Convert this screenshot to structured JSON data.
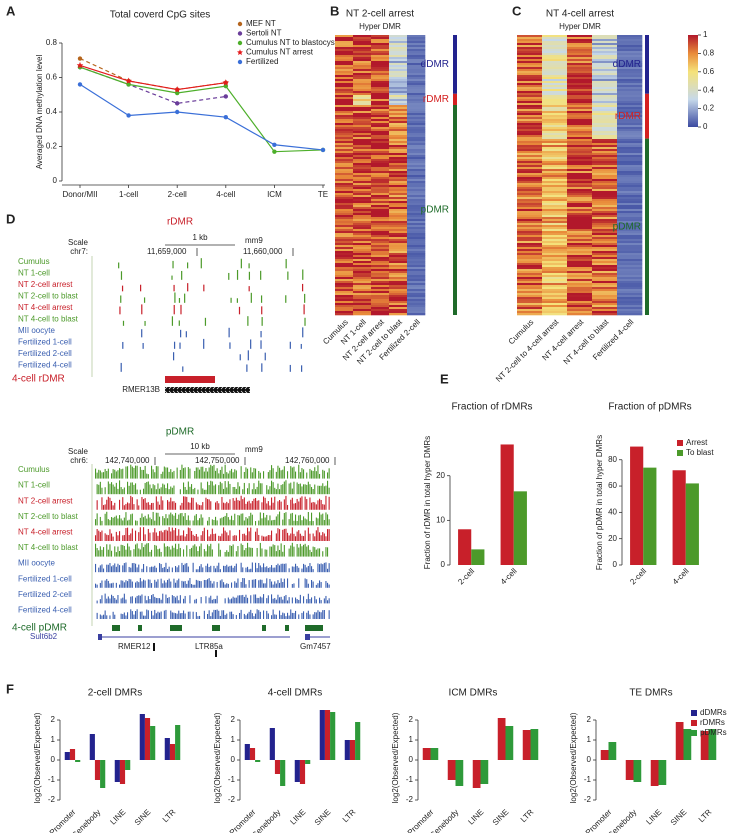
{
  "panel_labels": [
    "A",
    "B",
    "C",
    "D",
    "E",
    "F"
  ],
  "chart_data": [
    {
      "type": "line",
      "title": "Total coverd CpG sites",
      "y_label": "Averaged DNA methylation level",
      "categories": [
        "Donor/MII",
        "1-cell",
        "2-cell",
        "4-cell",
        "ICM",
        "TE"
      ],
      "ylim": [
        0,
        0.8
      ],
      "yticks": [
        0,
        0.2,
        0.4,
        0.6,
        0.8
      ],
      "legend": "top-right",
      "series": [
        {
          "name": "MEF NT",
          "color": "#b5651d",
          "dashed": true,
          "marker": "dot",
          "values": [
            0.71,
            0.58,
            0.53,
            0.57,
            null,
            null
          ]
        },
        {
          "name": "Sertoli NT",
          "color": "#6a3d9a",
          "dashed": true,
          "marker": "dot",
          "values": [
            0.66,
            0.56,
            0.45,
            0.49,
            null,
            null
          ]
        },
        {
          "name": "Cumulus NT to blastocyst",
          "color": "#4daf2a",
          "dashed": false,
          "marker": "dot",
          "values": [
            0.66,
            0.56,
            0.51,
            0.55,
            0.17,
            0.18
          ]
        },
        {
          "name": "Cumulus NT arrest",
          "color": "#e41a1c",
          "dashed": false,
          "marker": "star",
          "values": [
            0.67,
            0.58,
            0.53,
            0.57,
            null,
            null
          ]
        },
        {
          "name": "Fertilized",
          "color": "#3a6fd8",
          "dashed": false,
          "marker": "dot",
          "values": [
            0.56,
            0.38,
            0.4,
            0.37,
            0.21,
            0.18
          ]
        }
      ]
    },
    {
      "type": "bar",
      "title": "Fraction of rDMRs",
      "y_label": "Fraction of rDMR in total hyper DMRs",
      "categories": [
        "2-cell",
        "4-cell"
      ],
      "ylim": [
        0,
        28
      ],
      "yticks": [
        0,
        10,
        20
      ],
      "series": [
        {
          "name": "Arrest",
          "color": "#c8202a",
          "values": [
            8,
            27
          ]
        },
        {
          "name": "To blast",
          "color": "#4c9a2a",
          "values": [
            3.5,
            16.5
          ]
        }
      ]
    },
    {
      "type": "bar",
      "title": "Fraction of pDMRs",
      "y_label": "Fraction of pDMR in total hyper DMRs",
      "categories": [
        "2-cell",
        "4-cell"
      ],
      "ylim": [
        0,
        95
      ],
      "yticks": [
        0,
        20,
        40,
        60,
        80
      ],
      "legend": "top-right",
      "series": [
        {
          "name": "Arrest",
          "color": "#c8202a",
          "values": [
            90,
            72
          ]
        },
        {
          "name": "To blast",
          "color": "#4c9a2a",
          "values": [
            74,
            62
          ]
        }
      ]
    },
    {
      "type": "bar",
      "title": "2-cell DMRs",
      "y_label": "log2(Observed/Expected)",
      "categories": [
        "Promoter",
        "Genebody",
        "LINE",
        "SINE",
        "LTR"
      ],
      "ylim": [
        -2.3,
        2.5
      ],
      "yticks": [
        -2,
        -1,
        0,
        1,
        2
      ],
      "series": [
        {
          "name": "dDMRs",
          "color": "#23238e",
          "values": [
            0.4,
            1.3,
            -1.1,
            2.3,
            1.1
          ]
        },
        {
          "name": "rDMRs",
          "color": "#c8202a",
          "values": [
            0.55,
            -1.0,
            -1.2,
            2.1,
            0.8
          ]
        },
        {
          "name": "pDMRs",
          "color": "#2e9a3a",
          "values": [
            -0.1,
            -1.4,
            -0.5,
            1.7,
            1.75
          ]
        }
      ]
    },
    {
      "type": "bar",
      "title": "4-cell DMRs",
      "y_label": "log2(Observed/Expected)",
      "categories": [
        "Promoter",
        "Genebody",
        "LINE",
        "SINE",
        "LTR"
      ],
      "ylim": [
        -2.3,
        2.5
      ],
      "yticks": [
        -2,
        -1,
        0,
        1,
        2
      ],
      "series": [
        {
          "name": "dDMRs",
          "color": "#23238e",
          "values": [
            0.8,
            1.6,
            -1.1,
            2.5,
            1.0
          ]
        },
        {
          "name": "rDMRs",
          "color": "#c8202a",
          "values": [
            0.6,
            -0.7,
            -1.2,
            2.5,
            1.0
          ]
        },
        {
          "name": "pDMRs",
          "color": "#2e9a3a",
          "values": [
            -0.1,
            -1.3,
            -0.2,
            2.4,
            1.9
          ]
        }
      ]
    },
    {
      "type": "bar",
      "title": "ICM DMRs",
      "y_label": "log2(Observed/Expected)",
      "categories": [
        "Promoter",
        "Genebody",
        "LINE",
        "SINE",
        "LTR"
      ],
      "ylim": [
        -2.3,
        2.5
      ],
      "yticks": [
        -2,
        -1,
        0,
        1,
        2
      ],
      "series": [
        {
          "name": "rDMRs",
          "color": "#c8202a",
          "values": [
            0.6,
            -1.0,
            -1.4,
            2.1,
            1.5
          ]
        },
        {
          "name": "pDMRs",
          "color": "#2e9a3a",
          "values": [
            0.6,
            -1.3,
            -1.2,
            1.7,
            1.55
          ]
        }
      ]
    },
    {
      "type": "bar",
      "title": "TE DMRs",
      "y_label": "log2(Observed/Expected)",
      "categories": [
        "Promoter",
        "Genebody",
        "LINE",
        "SINE",
        "LTR"
      ],
      "ylim": [
        -2.3,
        2.5
      ],
      "yticks": [
        -2,
        -1,
        0,
        1,
        2
      ],
      "legend": "top-right",
      "series": [
        {
          "name": "dDMRs",
          "color": "#23238e",
          "values": [
            null,
            null,
            null,
            null,
            null
          ]
        },
        {
          "name": "rDMRs",
          "color": "#c8202a",
          "values": [
            0.5,
            -1.0,
            -1.3,
            1.9,
            1.45
          ]
        },
        {
          "name": "pDMRs",
          "color": "#2e9a3a",
          "values": [
            0.9,
            -1.1,
            -1.25,
            1.55,
            1.55
          ]
        }
      ]
    }
  ],
  "heatmaps": [
    {
      "title": "NT 2-cell arrest",
      "subtitle": "Hyper DMR",
      "columns": [
        "Cumulus",
        "NT 1-cell",
        "NT 2-cell arrest",
        "NT 2-cell to blast",
        "Fertilized 2-cell"
      ],
      "regions": [
        {
          "label": "dDMR",
          "color": "#23238e"
        },
        {
          "label": "rDMR",
          "color": "#d42020"
        },
        {
          "label": "pDMR",
          "color": "#1f6b2a"
        }
      ]
    },
    {
      "title": "NT 4-cell arrest",
      "subtitle": "Hyper DMR",
      "columns": [
        "Cumulus",
        "NT 2-cell to 4-cell arrest",
        "NT 4-cell arrest",
        "NT 4-cell to blast",
        "Fertilized 4-cell"
      ],
      "regions": [
        {
          "label": "dDMR",
          "color": "#23238e"
        },
        {
          "label": "rDMR",
          "color": "#d42020"
        },
        {
          "label": "pDMR",
          "color": "#1f6b2a"
        }
      ]
    }
  ],
  "colorbar": {
    "ticks": [
      0,
      0.2,
      0.4,
      0.6,
      0.8,
      1
    ]
  },
  "genome": [
    {
      "title": "rDMR",
      "scale": "Scale",
      "chrom": "chr7:",
      "scale_bar": "1 kb",
      "assembly": "mm9",
      "coords": [
        "11,659,000",
        "11,660,000"
      ],
      "tracks": [
        {
          "label": "Cumulus",
          "color": "#4c9a2a"
        },
        {
          "label": "NT 1-cell",
          "color": "#4c9a2a"
        },
        {
          "label": "NT 2-cell arrest",
          "color": "#c8202a"
        },
        {
          "label": "NT 2-cell to blast",
          "color": "#4c9a2a"
        },
        {
          "label": "NT 4-cell arrest",
          "color": "#c8202a"
        },
        {
          "label": "NT 4-cell to blast",
          "color": "#4c9a2a"
        },
        {
          "label": "MII oocyte",
          "color": "#3a5fb0"
        },
        {
          "label": "Fertilized 1-cell",
          "color": "#3a5fb0"
        },
        {
          "label": "Fertilized 2-cell",
          "color": "#3a5fb0"
        },
        {
          "label": "Fertilized 4-cell",
          "color": "#3a5fb0"
        }
      ],
      "region_label": "4-cell rDMR",
      "region_color": "#c8202a",
      "features": [
        "RMER13B"
      ]
    },
    {
      "title": "pDMR",
      "scale": "Scale",
      "chrom": "chr6:",
      "scale_bar": "10 kb",
      "assembly": "mm9",
      "coords": [
        "142,740,000",
        "142,750,000",
        "142,760,000"
      ],
      "tracks": [
        {
          "label": "Cumulus",
          "color": "#4c9a2a"
        },
        {
          "label": "NT 1-cell",
          "color": "#4c9a2a"
        },
        {
          "label": "NT 2-cell arrest",
          "color": "#c8202a"
        },
        {
          "label": "NT 2-cell to blast",
          "color": "#4c9a2a"
        },
        {
          "label": "NT 4-cell arrest",
          "color": "#c8202a"
        },
        {
          "label": "NT 4-cell to blast",
          "color": "#4c9a2a"
        },
        {
          "label": "MII oocyte",
          "color": "#3a5fb0"
        },
        {
          "label": "Fertilized 1-cell",
          "color": "#3a5fb0"
        },
        {
          "label": "Fertilized 2-cell",
          "color": "#3a5fb0"
        },
        {
          "label": "Fertilized 4-cell",
          "color": "#3a5fb0"
        }
      ],
      "region_label": "4-cell pDMR",
      "region_color": "#1f6b2a",
      "gene": "Sult6b2",
      "features": [
        "RMER12",
        "LTR85a",
        "Gm7457"
      ]
    }
  ]
}
